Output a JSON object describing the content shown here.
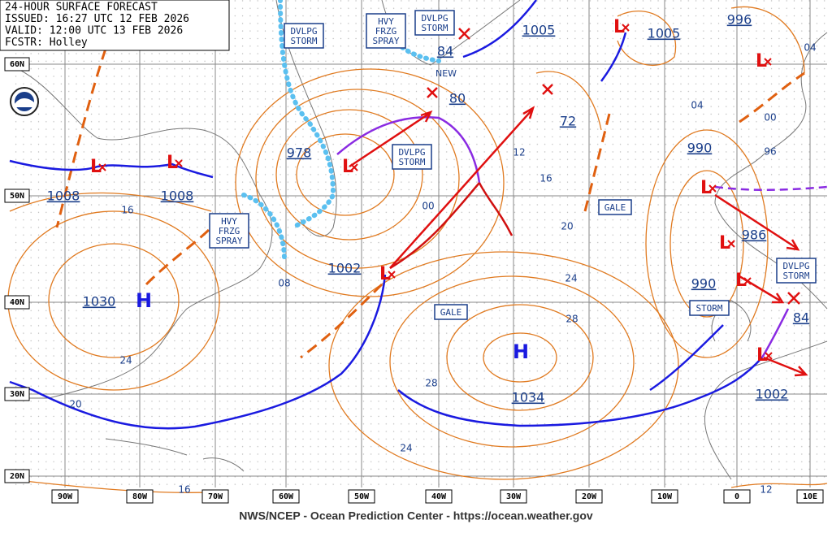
{
  "header": {
    "lines": [
      "24-HOUR SURFACE FORECAST",
      "ISSUED: 16:27 UTC 12 FEB 2026",
      "VALID: 12:00 UTC 13 FEB 2026",
      "FCSTR: Holley"
    ]
  },
  "footer": "NWS/NCEP - Ocean Prediction Center - https://ocean.weather.gov",
  "lat_labels": [
    "60N",
    "50N",
    "40N",
    "30N",
    "20N"
  ],
  "lon_labels": [
    "90W",
    "80W",
    "70W",
    "60W",
    "50W",
    "40W",
    "30W",
    "20W",
    "10W",
    "0",
    "10E"
  ],
  "highs": [
    "H",
    "H"
  ],
  "lows": [
    "L",
    "L",
    "L",
    "L",
    "L",
    "L",
    "L",
    "L",
    "L",
    "L"
  ],
  "pressures": [
    "1008",
    "1008",
    "1030",
    "978",
    "1002",
    "80",
    "84",
    "72",
    "1005",
    "1005",
    "996",
    "990",
    "986",
    "990",
    "84",
    "1034",
    "1002"
  ],
  "isobar_labels": [
    "16",
    "08",
    "00",
    "12",
    "16",
    "20",
    "24",
    "28",
    "28",
    "24",
    "20",
    "24",
    "16",
    "12",
    "04",
    "00",
    "96",
    "04"
  ],
  "warnings": [
    {
      "lines": [
        "DVLPG",
        "STORM"
      ]
    },
    {
      "lines": [
        "HVY",
        "FRZG",
        "SPRAY"
      ]
    },
    {
      "lines": [
        "DVLPG",
        "STORM"
      ]
    },
    {
      "lines": [
        "DVLPG",
        "STORM"
      ]
    },
    {
      "lines": [
        "HVY",
        "FRZG",
        "SPRAY"
      ]
    },
    {
      "lines": [
        "GALE"
      ]
    },
    {
      "lines": [
        "GALE"
      ]
    },
    {
      "lines": [
        "STORM"
      ]
    },
    {
      "lines": [
        "DVLPG",
        "STORM"
      ]
    }
  ],
  "new_label": "NEW"
}
